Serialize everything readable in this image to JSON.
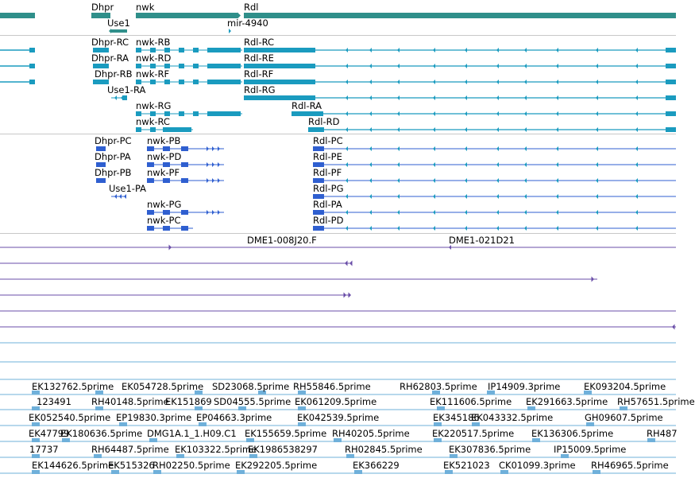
{
  "colors": {
    "gene": "#2f8f8a",
    "mrna": "#1a9bbf",
    "cds": "#2f5fd0",
    "clone": "#6a4ea8",
    "est": "#6fb0da",
    "separator": "#c8c8c8"
  },
  "gene_track": {
    "labels": [
      "Dhpr",
      "nwk",
      "Rdl",
      "Use1",
      "mir-4940"
    ]
  },
  "mrna_track": {
    "labels": [
      "Dhpr-RC",
      "nwk-RB",
      "Rdl-RC",
      "Dhpr-RA",
      "nwk-RD",
      "Rdl-RE",
      "Dhpr-RB",
      "nwk-RF",
      "Rdl-RF",
      "Use1-RA",
      "Rdl-RG",
      "nwk-RG",
      "Rdl-RA",
      "nwk-RC",
      "Rdl-RD"
    ]
  },
  "cds_track": {
    "labels": [
      "Dhpr-PC",
      "nwk-PB",
      "Rdl-PC",
      "Dhpr-PA",
      "nwk-PD",
      "Rdl-PE",
      "Dhpr-PB",
      "nwk-PF",
      "Rdl-PF",
      "Use1-PA",
      "Rdl-PG",
      "nwk-PG",
      "Rdl-PA",
      "nwk-PC",
      "Rdl-PD"
    ]
  },
  "clone_track": {
    "labels": [
      "DME1-008J20.F",
      "DME1-021D21"
    ]
  },
  "est_track": {
    "labels": [
      "EK132762.5prime",
      "EK054728.5prime",
      "SD23068.5prime",
      "RH55846.5prime",
      "RH62803.5prime",
      "IP14909.3prime",
      "EK093204.5prime",
      "123491",
      "RH40148.5prime",
      "EK151869",
      "SD04555.5prime",
      "EK061209.5prime",
      "EK111606.5prime",
      "EK291663.5prime",
      "RH57651.5prime",
      "EK052540.5prime",
      "EP19830.3prime",
      "EP04663.3prime",
      "EK042539.5prime",
      "EK345186",
      "EK043332.5prime",
      "GH09607.5prime",
      "EK47799",
      "EK180636.5prime",
      "DMG1A.1_1.H09.C1",
      "EK155659.5prime",
      "RH40205.5prime",
      "EK220517.5prime",
      "EK136306.5prime",
      "RH487",
      "17737",
      "RH64487.5prime",
      "EK103322.5prime",
      "EK1986538297",
      "RH02845.5prime",
      "EK307836.5prime",
      "IP15009.5prime",
      "EK144626.5prime",
      "EK515326",
      "RH02250.5prime",
      "EK292205.5prime",
      "EK366229",
      "EK521023",
      "CK01099.3prime",
      "RH46965.5prime"
    ]
  }
}
